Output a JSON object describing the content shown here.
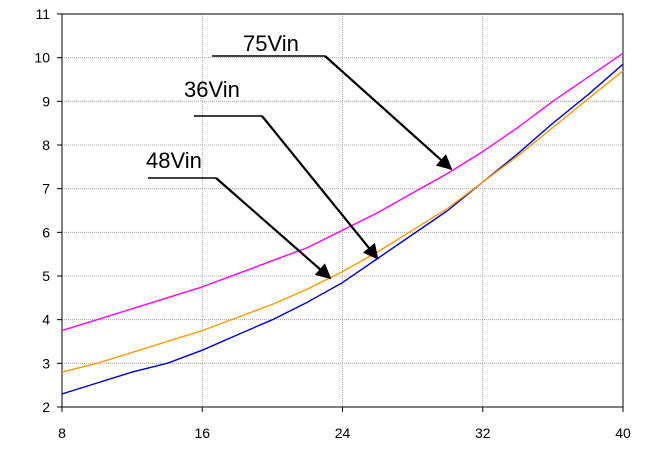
{
  "chart_data": {
    "type": "line",
    "xlim": [
      8,
      40
    ],
    "ylim": [
      2,
      11
    ],
    "xticks": [
      8,
      16,
      24,
      32,
      40
    ],
    "yticks": [
      2,
      3,
      4,
      5,
      6,
      7,
      8,
      9,
      10,
      11
    ],
    "grid": true,
    "series": [
      {
        "name": "75Vin",
        "color": "#ff00ff",
        "x": [
          8,
          10,
          12,
          14,
          16,
          18,
          20,
          22,
          24,
          26,
          28,
          30,
          32,
          34,
          36,
          38,
          40
        ],
        "y": [
          3.75,
          4.0,
          4.25,
          4.5,
          4.75,
          5.05,
          5.35,
          5.65,
          6.05,
          6.45,
          6.9,
          7.35,
          7.85,
          8.4,
          9.0,
          9.55,
          10.1
        ]
      },
      {
        "name": "36Vin",
        "color": "#0000cc",
        "x": [
          8,
          10,
          12,
          14,
          16,
          18,
          20,
          22,
          24,
          26,
          28,
          30,
          32,
          34,
          36,
          38,
          40
        ],
        "y": [
          2.3,
          2.55,
          2.8,
          3.0,
          3.3,
          3.65,
          4.0,
          4.4,
          4.85,
          5.4,
          5.95,
          6.5,
          7.15,
          7.8,
          8.5,
          9.15,
          9.85
        ]
      },
      {
        "name": "48Vin",
        "color": "#ff9900",
        "x": [
          8,
          10,
          12,
          14,
          16,
          18,
          20,
          22,
          24,
          26,
          28,
          30,
          32,
          34,
          36,
          38,
          40
        ],
        "y": [
          2.8,
          3.0,
          3.25,
          3.5,
          3.75,
          4.05,
          4.35,
          4.7,
          5.1,
          5.55,
          6.05,
          6.55,
          7.15,
          7.75,
          8.4,
          9.05,
          9.7
        ]
      }
    ],
    "annotations": [
      {
        "label": "75Vin",
        "series": "75Vin",
        "target_x": 30.2,
        "target_y": 7.45
      },
      {
        "label": "36Vin",
        "series": "36Vin",
        "target_x": 26.0,
        "target_y": 5.4
      },
      {
        "label": "48Vin",
        "series": "48Vin",
        "target_x": 23.3,
        "target_y": 4.95
      }
    ]
  }
}
